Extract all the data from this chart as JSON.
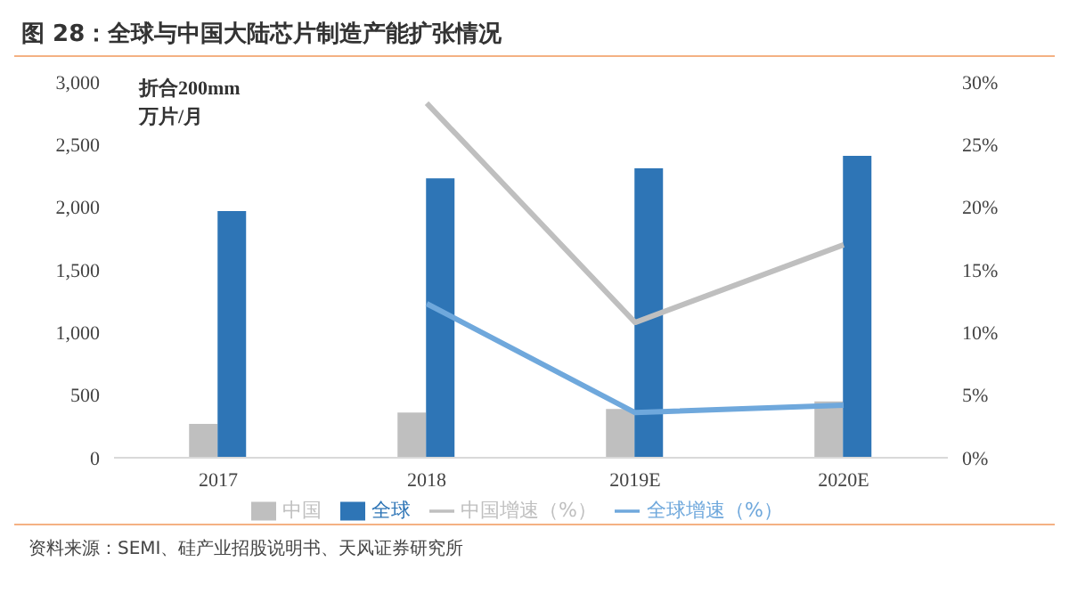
{
  "chart_data": {
    "type": "bar",
    "title": "图 28：全球与中国大陆芯片制造产能扩张情况",
    "categories": [
      "2017",
      "2018",
      "2019E",
      "2020E"
    ],
    "series": [
      {
        "name": "中国",
        "color": "#bfbfbf",
        "values": [
          270,
          360,
          390,
          450
        ]
      },
      {
        "name": "全球",
        "color": "#2e75b6",
        "values": [
          1970,
          2230,
          2310,
          2410
        ]
      },
      {
        "name": "中国增速（%）",
        "type": "line",
        "axis": "y2",
        "color": "#bfbfbf",
        "values": [
          null,
          28.3,
          10.8,
          17
        ]
      },
      {
        "name": "全球增速（%）",
        "type": "line",
        "axis": "y2",
        "color": "#6fa8dc",
        "values": [
          null,
          12.3,
          3.6,
          4.2
        ]
      }
    ],
    "ylim": [
      0,
      3000
    ],
    "yticks": [
      {
        "value": 0,
        "label": "0"
      },
      {
        "value": 500,
        "label": "500"
      },
      {
        "value": 1000,
        "label": "1,000"
      },
      {
        "value": 1500,
        "label": "1,500"
      },
      {
        "value": 2000,
        "label": "2,000"
      },
      {
        "value": 2500,
        "label": "2,500"
      },
      {
        "value": 3000,
        "label": "3,000"
      }
    ],
    "y2lim": [
      0,
      30
    ],
    "y2ticks": [
      {
        "value": 0,
        "label": "0%"
      },
      {
        "value": 5,
        "label": "5%"
      },
      {
        "value": 10,
        "label": "10%"
      },
      {
        "value": 15,
        "label": "15%"
      },
      {
        "value": 20,
        "label": "20%"
      },
      {
        "value": 25,
        "label": "25%"
      },
      {
        "value": 30,
        "label": "30%"
      }
    ],
    "legend": "bottom",
    "marker": "none",
    "line_style": "solid",
    "annotations": [
      "折合200mm\n万片/月",
      "资料来源：SEMI、硅产业招股说明书、天风证券研究所"
    ]
  }
}
